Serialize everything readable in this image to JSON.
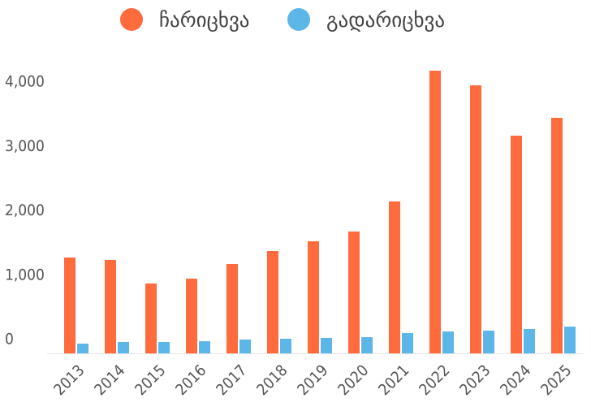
{
  "chart_data": {
    "type": "bar",
    "categories": [
      "2013",
      "2014",
      "2015",
      "2016",
      "2017",
      "2018",
      "2019",
      "2020",
      "2021",
      "2022",
      "2023",
      "2024",
      "2025"
    ],
    "series": [
      {
        "name": "ჩარიცხვა",
        "color": "#ff6b3d",
        "values": [
          1489,
          1451,
          1085,
          1161,
          1388,
          1590,
          1741,
          1893,
          2360,
          4391,
          4164,
          3382,
          3659
        ]
      },
      {
        "name": "გადარიცხვა",
        "color": "#5cb6e8",
        "values": [
          151,
          177,
          177,
          189,
          215,
          227,
          240,
          252,
          315,
          341,
          353,
          379,
          416
        ]
      }
    ],
    "ylim": [
      0,
      4500
    ],
    "yticks": [
      0,
      {
        "value": 1000,
        "label": "1,000"
      },
      {
        "value": 2000,
        "label": "2,000"
      },
      {
        "value": 3000,
        "label": "3,000"
      },
      {
        "value": 4000,
        "label": "4,000"
      }
    ],
    "grid": false,
    "legend": "top"
  }
}
